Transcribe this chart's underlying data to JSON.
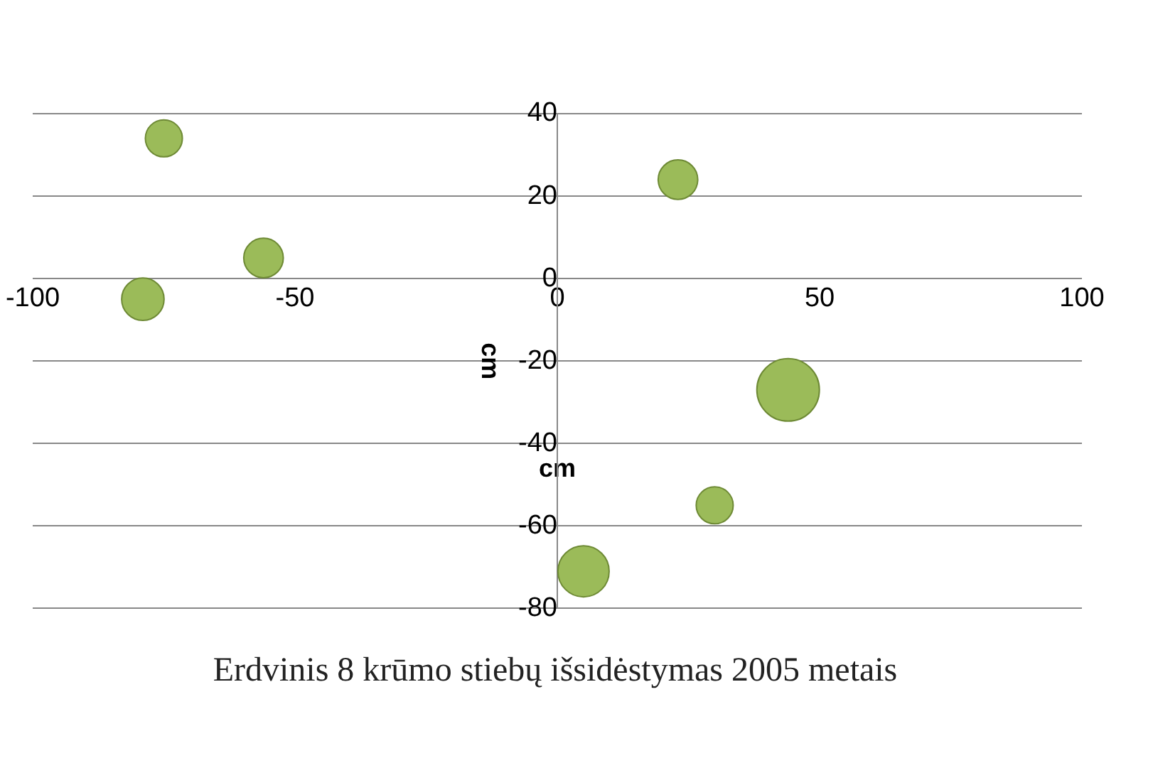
{
  "chart_data": {
    "type": "bubble",
    "title": "Erdvinis 8 krūmo stiebų išsidėstymas 2005 metais",
    "xlabel": "cm",
    "ylabel": "cm",
    "x": [
      -75,
      -79,
      -56,
      23,
      44,
      30,
      5
    ],
    "values": [
      34,
      -5,
      5,
      24,
      -27,
      -55,
      -71
    ],
    "sizes": [
      0.35,
      0.46,
      0.4,
      0.4,
      1,
      0.35,
      0.67
    ],
    "color": "#9bbb59",
    "xlim": [
      -100,
      100
    ],
    "xticks": [
      -100,
      -50,
      0,
      50,
      100
    ],
    "ylim": [
      -80,
      40
    ],
    "yticks": [
      -80,
      -60,
      -40,
      -20,
      0,
      20,
      40
    ],
    "grid": "y",
    "legend": false
  }
}
